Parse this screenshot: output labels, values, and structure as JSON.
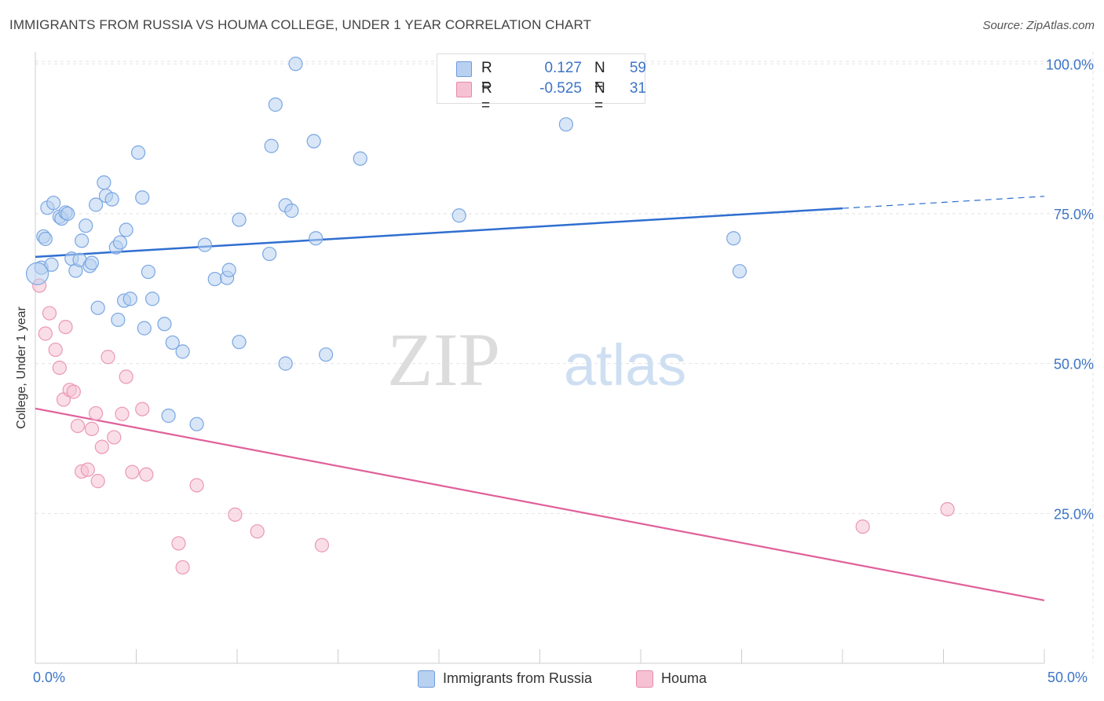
{
  "title": "IMMIGRANTS FROM RUSSIA VS HOUMA COLLEGE, UNDER 1 YEAR CORRELATION CHART",
  "source": "Source: ZipAtlas.com",
  "watermark": {
    "zip": "ZIP",
    "atlas": "atlas"
  },
  "colors": {
    "blue": "#3d74c6",
    "blue_fill": "#b8d1f0",
    "blue_line": "#2f6fd0",
    "pink": "#e06090",
    "pink_fill": "#f6c2d3",
    "pink_line": "#e0609a",
    "grid": "#e2e2e2",
    "axis_text": "#3d74c6"
  },
  "legend": {
    "rows": [
      {
        "r_label": "R =",
        "r_value": "0.127",
        "n_label": "N =",
        "n_value": "59",
        "color": "#b8d1f0",
        "border": "#6c9be0"
      },
      {
        "r_label": "R =",
        "r_value": "-0.525",
        "n_label": "N =",
        "n_value": "31",
        "color": "#f6c2d3",
        "border": "#e88aab"
      }
    ]
  },
  "bottom_legend": [
    {
      "label": "Immigrants from Russia",
      "color": "#b8d1f0",
      "border": "#6c9be0"
    },
    {
      "label": "Houma",
      "color": "#f6c2d3",
      "border": "#e88aab"
    }
  ],
  "chart_data": {
    "type": "scatter",
    "title": "IMMIGRANTS FROM RUSSIA VS HOUMA COLLEGE, UNDER 1 YEAR CORRELATION CHART",
    "xlabel": "",
    "ylabel": "College, Under 1 year",
    "xlim": [
      0,
      50
    ],
    "ylim": [
      0,
      102
    ],
    "x_tick_labels": [
      "0.0%",
      "50.0%"
    ],
    "y_tick_labels": [
      "25.0%",
      "50.0%",
      "75.0%",
      "100.0%"
    ],
    "y_ticks": [
      25,
      50,
      75,
      100
    ],
    "grid": true,
    "legend_position": "top-center",
    "series": [
      {
        "name": "Immigrants from Russia",
        "color": "#3d74c6",
        "points": [
          [
            0.3,
            66.0
          ],
          [
            0.4,
            71.2
          ],
          [
            0.5,
            70.8
          ],
          [
            0.6,
            76.0
          ],
          [
            0.8,
            66.5
          ],
          [
            0.9,
            76.8
          ],
          [
            1.2,
            74.5
          ],
          [
            1.3,
            74.2
          ],
          [
            1.5,
            75.2
          ],
          [
            1.6,
            75.0
          ],
          [
            1.8,
            67.5
          ],
          [
            2.0,
            65.5
          ],
          [
            2.2,
            67.3
          ],
          [
            2.3,
            70.5
          ],
          [
            2.5,
            73.0
          ],
          [
            2.7,
            66.3
          ],
          [
            2.8,
            66.8
          ],
          [
            3.0,
            76.5
          ],
          [
            3.1,
            59.3
          ],
          [
            3.4,
            80.2
          ],
          [
            3.5,
            78.0
          ],
          [
            3.8,
            77.4
          ],
          [
            4.0,
            69.4
          ],
          [
            4.1,
            57.3
          ],
          [
            4.2,
            70.2
          ],
          [
            4.4,
            60.5
          ],
          [
            4.5,
            72.3
          ],
          [
            4.7,
            60.8
          ],
          [
            5.1,
            85.2
          ],
          [
            5.3,
            77.7
          ],
          [
            5.4,
            55.9
          ],
          [
            5.6,
            65.3
          ],
          [
            5.8,
            60.8
          ],
          [
            6.4,
            56.6
          ],
          [
            6.6,
            41.3
          ],
          [
            6.8,
            53.5
          ],
          [
            7.3,
            52.0
          ],
          [
            8.0,
            39.9
          ],
          [
            8.4,
            69.8
          ],
          [
            8.9,
            64.1
          ],
          [
            9.5,
            64.3
          ],
          [
            9.6,
            65.6
          ],
          [
            10.1,
            74.0
          ],
          [
            10.1,
            53.6
          ],
          [
            11.6,
            68.3
          ],
          [
            11.7,
            86.3
          ],
          [
            11.9,
            93.2
          ],
          [
            12.4,
            50.0
          ],
          [
            12.4,
            76.4
          ],
          [
            12.7,
            75.5
          ],
          [
            12.9,
            100.0
          ],
          [
            13.8,
            87.1
          ],
          [
            13.9,
            70.9
          ],
          [
            14.4,
            51.5
          ],
          [
            16.1,
            84.2
          ],
          [
            21.0,
            74.7
          ],
          [
            26.3,
            89.9
          ],
          [
            34.6,
            70.9
          ],
          [
            34.9,
            65.4
          ]
        ],
        "trend": {
          "x": [
            0,
            40,
            50
          ],
          "y": [
            67.8,
            75.9,
            77.9
          ],
          "dashed_from_x": 40
        }
      },
      {
        "name": "Houma",
        "color": "#e06090",
        "points": [
          [
            0.2,
            63.0
          ],
          [
            0.5,
            55.0
          ],
          [
            0.7,
            58.4
          ],
          [
            1.0,
            52.3
          ],
          [
            1.2,
            49.3
          ],
          [
            1.4,
            44.0
          ],
          [
            1.5,
            56.1
          ],
          [
            1.7,
            45.6
          ],
          [
            1.9,
            45.3
          ],
          [
            2.1,
            39.6
          ],
          [
            2.3,
            32.0
          ],
          [
            2.6,
            32.3
          ],
          [
            2.8,
            39.1
          ],
          [
            3.0,
            41.7
          ],
          [
            3.1,
            30.4
          ],
          [
            3.3,
            36.1
          ],
          [
            3.6,
            51.1
          ],
          [
            3.9,
            37.7
          ],
          [
            4.3,
            41.6
          ],
          [
            4.5,
            47.8
          ],
          [
            4.8,
            31.9
          ],
          [
            5.3,
            42.4
          ],
          [
            5.5,
            31.5
          ],
          [
            7.1,
            20.0
          ],
          [
            7.3,
            16.0
          ],
          [
            8.0,
            29.7
          ],
          [
            9.9,
            24.8
          ],
          [
            11.0,
            22.0
          ],
          [
            14.2,
            19.7
          ],
          [
            41.0,
            22.8
          ],
          [
            45.2,
            25.7
          ]
        ],
        "trend": {
          "x": [
            0,
            50
          ],
          "y": [
            42.5,
            10.5
          ]
        }
      }
    ]
  }
}
